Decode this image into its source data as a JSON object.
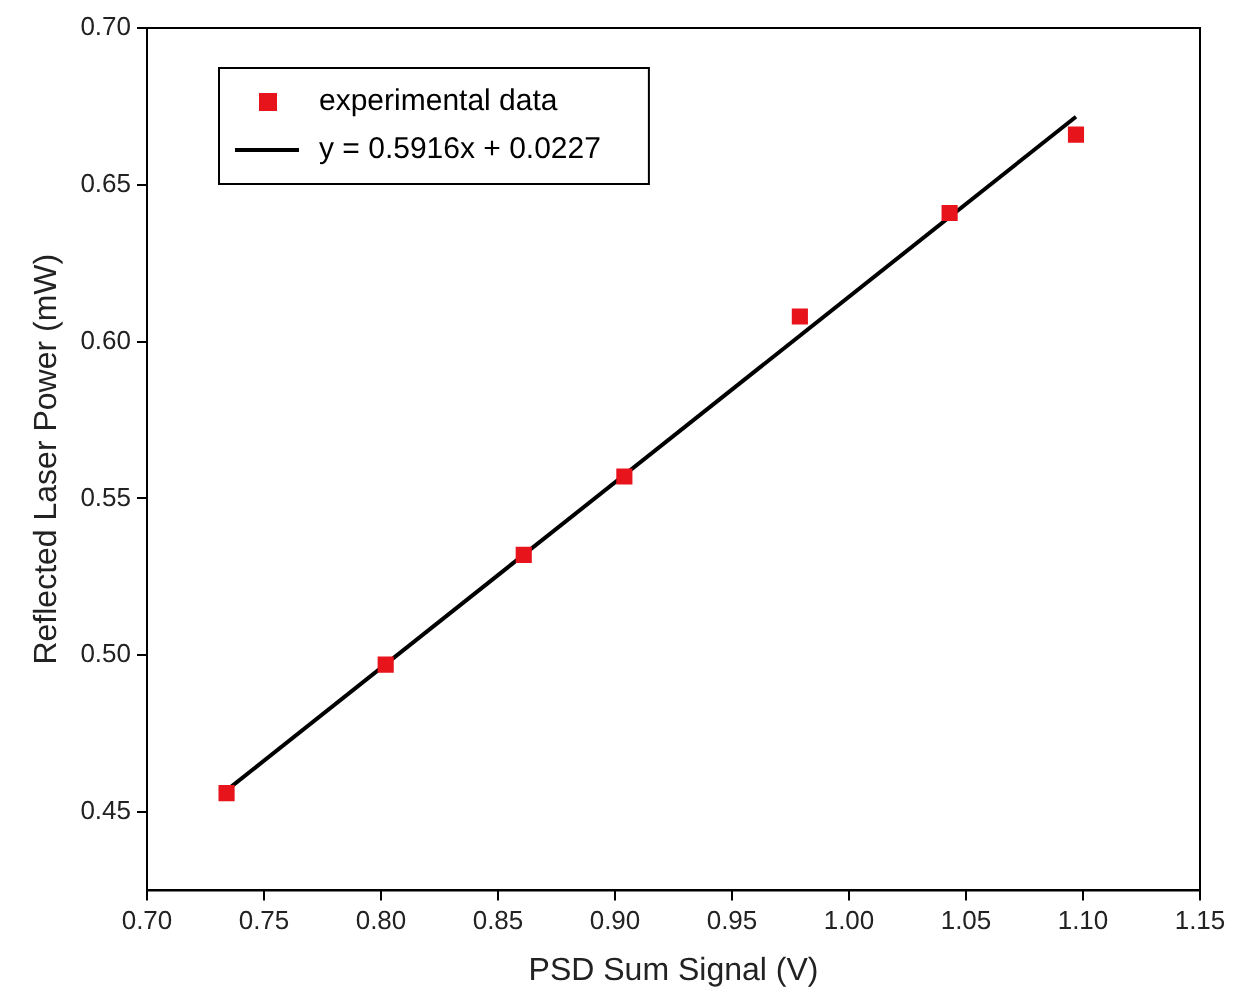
{
  "chart_data": {
    "type": "scatter",
    "xlabel": "PSD Sum Signal (V)",
    "ylabel": "Reflected Laser Power (mW)",
    "xlim": [
      0.7,
      1.15
    ],
    "xticks": [
      {
        "value": 0.7,
        "label": "0.70"
      },
      {
        "value": 0.75,
        "label": "0.75"
      },
      {
        "value": 0.8,
        "label": "0.80"
      },
      {
        "value": 0.85,
        "label": "0.85"
      },
      {
        "value": 0.9,
        "label": "0.90"
      },
      {
        "value": 0.95,
        "label": "0.95"
      },
      {
        "value": 1.0,
        "label": "1.00"
      },
      {
        "value": 1.05,
        "label": "1.05"
      },
      {
        "value": 1.1,
        "label": "1.10"
      },
      {
        "value": 1.15,
        "label": "1.15"
      }
    ],
    "ylim": [
      0.425,
      0.7
    ],
    "yticks": [
      {
        "value": 0.45,
        "label": "0.45"
      },
      {
        "value": 0.5,
        "label": "0.50"
      },
      {
        "value": 0.55,
        "label": "0.55"
      },
      {
        "value": 0.6,
        "label": "0.60"
      },
      {
        "value": 0.65,
        "label": "0.65"
      },
      {
        "value": 0.7,
        "label": "0.70"
      }
    ],
    "grid": false,
    "legend": "top left",
    "series": [
      {
        "name": "experimental data",
        "marker": "square",
        "color": "#e8141c",
        "x": [
          0.734,
          0.802,
          0.861,
          0.904,
          0.979,
          1.043,
          1.097
        ],
        "values": [
          0.456,
          0.497,
          0.532,
          0.557,
          0.608,
          0.641,
          0.666
        ]
      },
      {
        "name": "y = 0.5916x + 0.0227",
        "type": "line",
        "marker": "none",
        "color": "#000000",
        "x": [
          0.734,
          1.097
        ],
        "values": [
          0.4569,
          0.6717
        ]
      }
    ]
  }
}
